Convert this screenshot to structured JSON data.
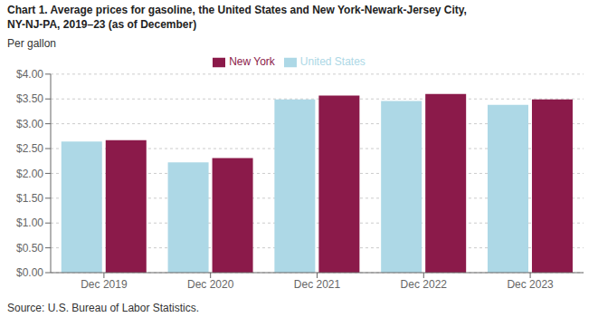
{
  "chart_data": {
    "type": "bar",
    "title": "Chart 1. Average prices for gasoline, the United States and New York-Newark-Jersey City,\nNY-NJ-PA, 2019–23 (as of December)",
    "ylabel": "Per gallon",
    "source": "Source: U.S. Bureau of Labor Statistics.",
    "categories": [
      "Dec 2019",
      "Dec 2020",
      "Dec 2021",
      "Dec 2022",
      "Dec 2023"
    ],
    "series": [
      {
        "name": "United States",
        "color": "#add8e6",
        "values": [
          2.64,
          2.22,
          3.49,
          3.46,
          3.38
        ]
      },
      {
        "name": "New York",
        "color": "#8b1a4a",
        "values": [
          2.67,
          2.31,
          3.57,
          3.6,
          3.49
        ]
      }
    ],
    "ylim": [
      0,
      4.0
    ],
    "yticks": [
      {
        "value": 0.0,
        "label": "$0.00"
      },
      {
        "value": 0.5,
        "label": "$0.50"
      },
      {
        "value": 1.0,
        "label": "$1.00"
      },
      {
        "value": 1.5,
        "label": "$1.50"
      },
      {
        "value": 2.0,
        "label": "$2.00"
      },
      {
        "value": 2.5,
        "label": "$2.50"
      },
      {
        "value": 3.0,
        "label": "$3.00"
      },
      {
        "value": 3.5,
        "label": "$3.50"
      },
      {
        "value": 4.0,
        "label": "$4.00"
      }
    ],
    "grid": true,
    "legend": "top"
  }
}
